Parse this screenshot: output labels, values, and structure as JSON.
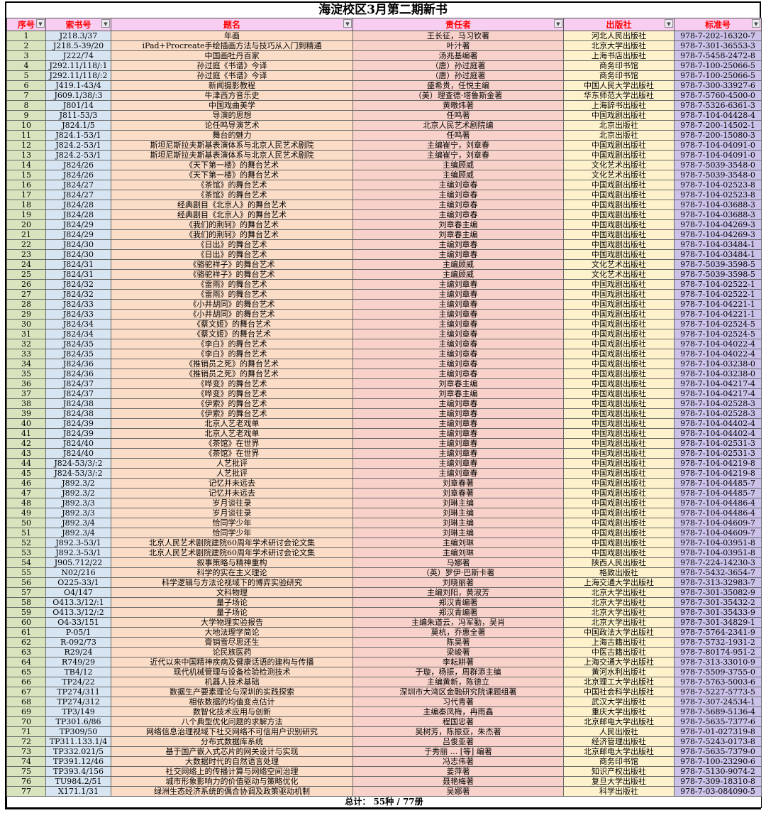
{
  "title": "海淀校区3月第二期新书",
  "colors": {
    "header_bg": "#F8CDF2",
    "header_text": "#FF0000",
    "col_seq_bg": "#D7E4BD",
    "col_callno_bg": "#D7E4F1",
    "col_title_bg": "#FBDCC6",
    "col_author_bg": "#F8D2CA",
    "col_publisher_bg": "#FEF2CC",
    "col_isbn_bg": "#CCC1E8"
  },
  "table": {
    "columns": [
      {
        "key": "seq",
        "label": "序号"
      },
      {
        "key": "call-number",
        "label": "索书号"
      },
      {
        "key": "title",
        "label": "题名"
      },
      {
        "key": "author",
        "label": "责任者"
      },
      {
        "key": "publisher",
        "label": "出版社"
      },
      {
        "key": "isbn",
        "label": "标准号"
      }
    ],
    "filter_icon": "▼",
    "footer": "总计： 55种 / 77册",
    "rows": [
      [
        "1",
        "J218.3/37",
        "年画",
        "王长征，马习钦著",
        "河北人民出版社",
        "978-7-202-16320-7"
      ],
      [
        "2",
        "J218.5-39/20",
        "iPad+Procreate手绘插画方法与技巧从入门到精通",
        "叶汁著",
        "北京大学出版社",
        "978-7-301-36553-3"
      ],
      [
        "3",
        "J222/74",
        "中国画牡丹百家",
        "汤兆基编著",
        "上海书店出版社",
        "978-7-5458-2472-8"
      ],
      [
        "4",
        "J292.11/118/:1",
        "孙过庭《书谱》今译",
        "（唐）孙过庭著",
        "商务印书馆",
        "978-7-100-25066-5"
      ],
      [
        "5",
        "J292.11/118/:2",
        "孙过庭《书谱》今译",
        "（唐）孙过庭著",
        "商务印书馆",
        "978-7-100-25066-5"
      ],
      [
        "6",
        "J419.1-43/4",
        "新闻摄影教程",
        "盛希贵，任悦主编",
        "中国人民大学出版社",
        "978-7-300-33927-6"
      ],
      [
        "7",
        "J609.1/38/:3",
        "牛津西方音乐史",
        "（美）理查德·塔鲁斯金著",
        "华东师范大学出版社",
        "978-7-5760-4500-0"
      ],
      [
        "8",
        "J801/14",
        "中国戏曲美学",
        "黄暾炜著",
        "上海辞书出版社",
        "978-7-5326-6361-3"
      ],
      [
        "9",
        "J811-53/3",
        "导演的思想",
        "任鸣著",
        "中国戏剧出版社",
        "978-7-104-04428-4"
      ],
      [
        "10",
        "J824.1/5",
        "论任鸣导演艺术",
        "北京人民艺术剧院编",
        "北京出版社",
        "978-7-200-14502-1"
      ],
      [
        "11",
        "J824.1-53/1",
        "舞台的魅力",
        "任鸣著",
        "北京出版社",
        "978-7-200-15080-3"
      ],
      [
        "12",
        "J824.2-53/1",
        "斯坦尼斯拉夫斯基表演体系与北京人民艺术剧院",
        "主编崔宁，刘章春",
        "中国戏剧出版社",
        "978-7-104-04091-0"
      ],
      [
        "13",
        "J824.2-53/1",
        "斯坦尼斯拉夫斯基表演体系与北京人民艺术剧院",
        "主编崔宁，刘章春",
        "中国戏剧出版社",
        "978-7-104-04091-0"
      ],
      [
        "14",
        "J824/26",
        "《天下第一楼》的舞台艺术",
        "主编顾威",
        "文化艺术出版社",
        "978-7-5039-3548-0"
      ],
      [
        "15",
        "J824/26",
        "《天下第一楼》的舞台艺术",
        "主编顾威",
        "文化艺术出版社",
        "978-7-5039-3548-0"
      ],
      [
        "16",
        "J824/27",
        "《茶馆》的舞台艺术",
        "主编刘章春",
        "中国戏剧出版社",
        "978-7-104-02523-8"
      ],
      [
        "17",
        "J824/27",
        "《茶馆》的舞台艺术",
        "主编刘章春",
        "中国戏剧出版社",
        "978-7-104-02523-8"
      ],
      [
        "18",
        "J824/28",
        "经典剧目《北京人》的舞台艺术",
        "主编刘章春",
        "中国戏剧出版社",
        "978-7-104-03688-3"
      ],
      [
        "19",
        "J824/28",
        "经典剧目《北京人》的舞台艺术",
        "主编刘章春",
        "中国戏剧出版社",
        "978-7-104-03688-3"
      ],
      [
        "20",
        "J824/29",
        "《我们的荆轲》的舞台艺术",
        "刘章春主编",
        "中国戏剧出版社",
        "978-7-104-04269-3"
      ],
      [
        "21",
        "J824/29",
        "《我们的荆轲》的舞台艺术",
        "刘章春主编",
        "中国戏剧出版社",
        "978-7-104-04269-3"
      ],
      [
        "22",
        "J824/30",
        "《日出》的舞台艺术",
        "主编刘章春",
        "中国戏剧出版社",
        "978-7-104-03484-1"
      ],
      [
        "23",
        "J824/30",
        "《日出》的舞台艺术",
        "主编刘章春",
        "中国戏剧出版社",
        "978-7-104-03484-1"
      ],
      [
        "24",
        "J824/31",
        "《骆驼祥子》的舞台艺术",
        "主编顾威",
        "文化艺术出版社",
        "978-7-5039-3598-5"
      ],
      [
        "25",
        "J824/31",
        "《骆驼祥子》的舞台艺术",
        "主编顾威",
        "文化艺术出版社",
        "978-7-5039-3598-5"
      ],
      [
        "26",
        "J824/32",
        "《雷雨》的舞台艺术",
        "主编刘章春",
        "中国戏剧出版社",
        "978-7-104-02522-1"
      ],
      [
        "27",
        "J824/32",
        "《雷雨》的舞台艺术",
        "主编刘章春",
        "中国戏剧出版社",
        "978-7-104-02522-1"
      ],
      [
        "28",
        "J824/33",
        "《小井胡同》的舞台艺术",
        "主编刘章春",
        "中国戏剧出版社",
        "978-7-104-04221-1"
      ],
      [
        "29",
        "J824/33",
        "《小井胡同》的舞台艺术",
        "主编刘章春",
        "中国戏剧出版社",
        "978-7-104-04221-1"
      ],
      [
        "30",
        "J824/34",
        "《蔡文姬》的舞台艺术",
        "主编刘章春",
        "中国戏剧出版社",
        "978-7-104-02524-5"
      ],
      [
        "31",
        "J824/34",
        "《蔡文姬》的舞台艺术",
        "主编刘章春",
        "中国戏剧出版社",
        "978-7-104-02524-5"
      ],
      [
        "32",
        "J824/35",
        "《李白》的舞台艺术",
        "主编刘章春",
        "中国戏剧出版社",
        "978-7-104-04022-4"
      ],
      [
        "33",
        "J824/35",
        "《李白》的舞台艺术",
        "主编刘章春",
        "中国戏剧出版社",
        "978-7-104-04022-4"
      ],
      [
        "34",
        "J824/36",
        "《推销员之死》的舞台艺术",
        "主编刘章春",
        "中国戏剧出版社",
        "978-7-104-03238-0"
      ],
      [
        "35",
        "J824/36",
        "《推销员之死》的舞台艺术",
        "主编刘章春",
        "中国戏剧出版社",
        "978-7-104-03238-0"
      ],
      [
        "36",
        "J824/37",
        "《哗变》的舞台艺术",
        "刘章春主编",
        "中国戏剧出版社",
        "978-7-104-04217-4"
      ],
      [
        "37",
        "J824/37",
        "《哗变》的舞台艺术",
        "刘章春主编",
        "中国戏剧出版社",
        "978-7-104-04217-4"
      ],
      [
        "38",
        "J824/38",
        "《伊索》的舞台艺术",
        "主编刘章春",
        "中国戏剧出版社",
        "978-7-104-02528-3"
      ],
      [
        "39",
        "J824/38",
        "《伊索》的舞台艺术",
        "主编刘章春",
        "中国戏剧出版社",
        "978-7-104-02528-3"
      ],
      [
        "40",
        "J824/39",
        "北京人艺老戏单",
        "主编刘章春",
        "中国戏剧出版社",
        "978-7-104-04402-4"
      ],
      [
        "41",
        "J824/39",
        "北京人艺老戏单",
        "主编刘章春",
        "中国戏剧出版社",
        "978-7-104-04402-4"
      ],
      [
        "42",
        "J824/40",
        "《茶馆》在世界",
        "主编刘章春",
        "中国戏剧出版社",
        "978-7-104-02531-3"
      ],
      [
        "43",
        "J824/40",
        "《茶馆》在世界",
        "主编刘章春",
        "中国戏剧出版社",
        "978-7-104-02531-3"
      ],
      [
        "44",
        "J824-53/3/:2",
        "人艺批评",
        "主编刘章春",
        "中国戏剧出版社",
        "978-7-104-04219-8"
      ],
      [
        "45",
        "J824-53/3/:2",
        "人艺批评",
        "主编刘章春",
        "中国戏剧出版社",
        "978-7-104-04219-8"
      ],
      [
        "46",
        "J892.3/2",
        "记忆并未远去",
        "刘章春著",
        "中国戏剧出版社",
        "978-7-104-04485-7"
      ],
      [
        "47",
        "J892.3/2",
        "记忆并未远去",
        "刘章春著",
        "中国戏剧出版社",
        "978-7-104-04485-7"
      ],
      [
        "48",
        "J892.3/3",
        "岁月谈往录",
        "刘琳主编",
        "中国戏剧出版社",
        "978-7-104-04486-4"
      ],
      [
        "49",
        "J892.3/3",
        "岁月谈往录",
        "刘琳主编",
        "中国戏剧出版社",
        "978-7-104-04486-4"
      ],
      [
        "50",
        "J892.3/4",
        "恰同学少年",
        "刘琳主编",
        "中国戏剧出版社",
        "978-7-104-04609-7"
      ],
      [
        "51",
        "J892.3/4",
        "恰同学少年",
        "刘琳主编",
        "中国戏剧出版社",
        "978-7-104-04609-7"
      ],
      [
        "52",
        "J892.3-53/1",
        "北京人民艺术剧院建院60周年学术研讨会论文集",
        "主编刘琳",
        "中国戏剧出版社",
        "978-7-104-03951-8"
      ],
      [
        "53",
        "J892.3-53/1",
        "北京人民艺术剧院建院60周年学术研讨会论文集",
        "主编刘琳",
        "中国戏剧出版社",
        "978-7-104-03951-8"
      ],
      [
        "54",
        "J905.712/22",
        "叙事策略与精神重构",
        "马娜著",
        "陕西人民出版社",
        "978-7-224-14230-3"
      ],
      [
        "55",
        "N02/216",
        "科学的实在主义理论",
        "（英）罗伊·巴斯卡著",
        "格致出版社",
        "978-7-5432-3654-7"
      ],
      [
        "56",
        "O225-33/1",
        "科学逻辑与方法论视域下的博弈实验研究",
        "刘晓丽著",
        "上海交通大学出版社",
        "978-7-313-32983-7"
      ],
      [
        "57",
        "O4/147",
        "文科物理",
        "主编刘阳，黄淑芳",
        "北京大学出版社",
        "978-7-301-35082-9"
      ],
      [
        "58",
        "O413.3/12/:1",
        "量子场论",
        "郑汉青编著",
        "北京大学出版社",
        "978-7-301-35432-2"
      ],
      [
        "59",
        "O413.3/12/:2",
        "量子场论",
        "郑汉青编著",
        "北京大学出版社",
        "978-7-301-35433-9"
      ],
      [
        "60",
        "O4-33/151",
        "大学物理实验报告",
        "主编朱道云，冯军勤，吴肖",
        "北京大学出版社",
        "978-7-301-34829-1"
      ],
      [
        "61",
        "P-05/1",
        "大地法理学简论",
        "莫杭，乔惠全著",
        "中国政法大学出版社",
        "978-7-5764-2341-9"
      ],
      [
        "62",
        "R-092/73",
        "膏销雪尽思还生",
        "陈昊著",
        "上海古籍出版社",
        "978-7-5732-1931-2"
      ],
      [
        "63",
        "R29/24",
        "论民族医药",
        "梁峻著",
        "中医古籍出版社",
        "978-7-80174-951-2"
      ],
      [
        "64",
        "R749/29",
        "近代以来中国精神疾病及健康话语的建构与传播",
        "李耘耕著",
        "上海交通大学出版社",
        "978-7-313-33010-9"
      ],
      [
        "65",
        "TB4/12",
        "现代机械管理与设备检验检测技术",
        "于璇，杨振，周群添主编",
        "黄河水利出版社",
        "978-7-5509-3755-0"
      ],
      [
        "66",
        "TP24/22",
        "机器人技术基础",
        "主编黄新，陈德立",
        "北京理工大学出版社",
        "978-7-5763-5003-6"
      ],
      [
        "67",
        "TP274/311",
        "数据生产要素理论与深圳的实践探索",
        "深圳市大湾区金融研究院课题组著",
        "中国社会科学出版社",
        "978-7-5227-5773-5"
      ],
      [
        "68",
        "TP274/312",
        "相依数据的均值变点估计",
        "习代青著",
        "武汉大学出版社",
        "978-7-307-24534-1"
      ],
      [
        "69",
        "TP3/149",
        "数智化技术应用与创新",
        "主编秦凤梅，冉雨鑫",
        "重庆大学出版社",
        "978-7-5689-5136-4"
      ],
      [
        "70",
        "TP301.6/86",
        "八个典型优化问题的求解方法",
        "程国忠著",
        "北京邮电大学出版社",
        "978-7-5635-7377-6"
      ],
      [
        "71",
        "TP309/50",
        "网络信息治理视域下社交网络不可信用户识别研究",
        "吴树芳，陈振亚，朱杰著",
        "人民出版社",
        "978-7-01-027319-8"
      ],
      [
        "72",
        "TP311.133.1/4",
        "分布式数据库系统",
        "吕俊亚著",
        "经济管理出版社",
        "978-7-5243-0173-8"
      ],
      [
        "73",
        "TP332.021/5",
        "基于国产嵌入式芯片的网关设计与实现",
        "于秀丽 ... [等] 编著",
        "北京邮电大学出版社",
        "978-7-5635-7379-0"
      ],
      [
        "74",
        "TP391.12/46",
        "大数据时代的自然语言处理",
        "冯志伟著",
        "商务印书馆",
        "978-7-100-23290-6"
      ],
      [
        "75",
        "TP393.4/156",
        "社交网络上的传播计算与网络空间治理",
        "姜萍著",
        "知识产权出版社",
        "978-7-5130-9074-2"
      ],
      [
        "76",
        "TU984.2/51",
        "城市形象影响力的价值驱动与策略优化",
        "聂艳梅著",
        "复旦大学出版社",
        "978-7-309-18310-8"
      ],
      [
        "77",
        "X171.1/31",
        "绿洲生态经济系统的偶合协调及政策驱动机制",
        "吴娜著",
        "科学出版社",
        "978-7-03-084090-5"
      ]
    ]
  }
}
